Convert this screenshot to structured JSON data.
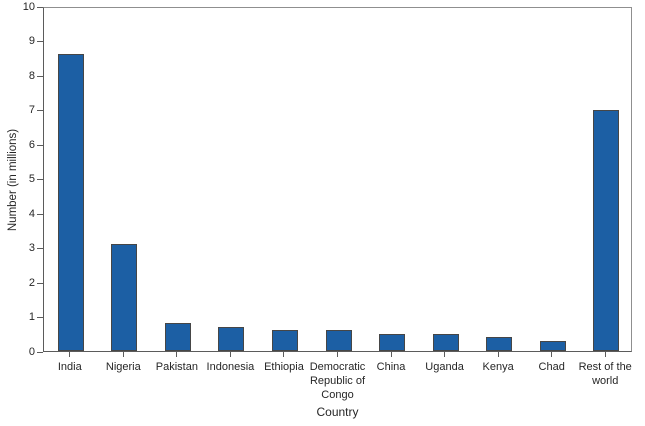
{
  "figure": {
    "kind": "static-bar-chart-figure"
  },
  "chart_data": {
    "type": "bar",
    "title": "",
    "categories": [
      "India",
      "Nigeria",
      "Pakistan",
      "Indonesia",
      "Ethiopia",
      "Democratic\nRepublic of\nCongo",
      "China",
      "Uganda",
      "Kenya",
      "Chad",
      "Rest of the\nworld"
    ],
    "values": [
      8.6,
      3.1,
      0.8,
      0.7,
      0.6,
      0.6,
      0.5,
      0.5,
      0.4,
      0.3,
      7.0
    ],
    "xlabel": "Country",
    "ylabel": "Number (in millions)",
    "ylim": [
      0,
      10
    ],
    "yticks": [
      0,
      1,
      2,
      3,
      4,
      5,
      6,
      7,
      8,
      9,
      10
    ],
    "grid": false,
    "legend": null,
    "bar_color": "#1C5FA4",
    "bar_border_color": "#464646",
    "axis_color": "#5b5b5b",
    "frame_color": "#8f8f8f",
    "text_color": "#262626"
  }
}
